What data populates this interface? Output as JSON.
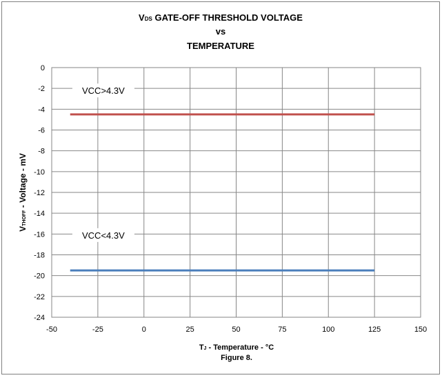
{
  "chart_data": {
    "type": "line",
    "title_line1_main": "V",
    "title_line1_sub": "DS",
    "title_line1_rest": " GATE-OFF THRESHOLD VOLTAGE",
    "title_line2": "vs",
    "title_line3": "TEMPERATURE",
    "ylabel_main": "V",
    "ylabel_sub": "THOFF",
    "ylabel_rest": " - Voltage - mV",
    "xlabel_main": "T",
    "xlabel_sub": "J",
    "xlabel_rest": " - Temperature - °C",
    "caption": "Figure 8.",
    "xlim": [
      -50,
      150
    ],
    "ylim": [
      -24,
      0
    ],
    "xticks": [
      -50,
      -25,
      0,
      25,
      50,
      75,
      100,
      125,
      150
    ],
    "yticks": [
      0,
      -2,
      -4,
      -6,
      -8,
      -10,
      -12,
      -14,
      -16,
      -18,
      -20,
      -22,
      -24
    ],
    "grid": true,
    "series": [
      {
        "name": "VCC>4.3V",
        "color": "#c0504d",
        "x": [
          -40,
          125
        ],
        "y": [
          -4.5,
          -4.5
        ],
        "label_x": -22,
        "label_y": -2.4
      },
      {
        "name": "VCC<4.3V",
        "color": "#4a7ebb",
        "x": [
          -40,
          125
        ],
        "y": [
          -19.5,
          -19.5
        ],
        "label_x": -22,
        "label_y": -16.3
      }
    ]
  }
}
